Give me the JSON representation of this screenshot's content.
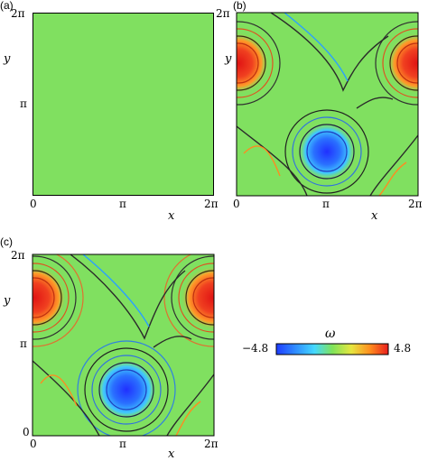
{
  "panels": [
    {
      "label": "(a)",
      "x_ticks": [
        "0",
        "π",
        "2π"
      ],
      "y_ticks": [
        "2π",
        "π"
      ],
      "xlabel": "x",
      "ylabel": "y"
    },
    {
      "label": "(b)",
      "x_ticks": [
        "0",
        "π",
        "2π"
      ],
      "y_ticks": [
        "2π"
      ],
      "xlabel": "x",
      "ylabel": "y"
    },
    {
      "label": "(c)",
      "x_ticks": [
        "0",
        "π",
        "2π"
      ],
      "y_ticks": [
        "2π",
        "π",
        "0"
      ],
      "xlabel": "x",
      "ylabel": "y"
    }
  ],
  "colorbar": {
    "symbol": "ω",
    "min_label": "−4.8",
    "max_label": "4.8",
    "min": -4.8,
    "max": 4.8,
    "colors": [
      "#1e3cff",
      "#2f8cff",
      "#44d8ff",
      "#7fe35a",
      "#e6e640",
      "#ff8c1e",
      "#e81e1e"
    ]
  },
  "field_color": "#80e060"
}
